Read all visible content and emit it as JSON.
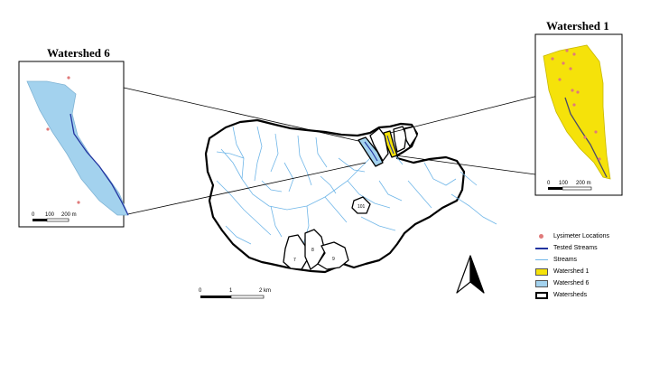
{
  "insets": {
    "left": {
      "title": "Watershed 6",
      "scale_ticks": [
        "0",
        "100",
        "200 m"
      ]
    },
    "right": {
      "title": "Watershed 1",
      "scale_ticks": [
        "0",
        "100",
        "200 m"
      ]
    }
  },
  "main_map": {
    "scale_ticks": [
      "0",
      "1",
      "2 km"
    ],
    "watershed_labels": [
      "7",
      "8",
      "9",
      "101"
    ]
  },
  "legend": [
    {
      "label": "Lysimeter Locations",
      "symbol": "dot",
      "color": "#e07a7a"
    },
    {
      "label": "Tested Streams",
      "symbol": "line",
      "color": "#2233a0"
    },
    {
      "label": "Streams",
      "symbol": "line",
      "color": "#6fb6e8"
    },
    {
      "label": "Watershed 1",
      "symbol": "fill",
      "color": "#f5e20a"
    },
    {
      "label": "Watershed 6",
      "symbol": "fill",
      "color": "#a3d2ee"
    },
    {
      "label": "Watersheds",
      "symbol": "outline",
      "color": "#000000"
    }
  ],
  "north_arrow": {
    "icon": "north-arrow-icon"
  }
}
